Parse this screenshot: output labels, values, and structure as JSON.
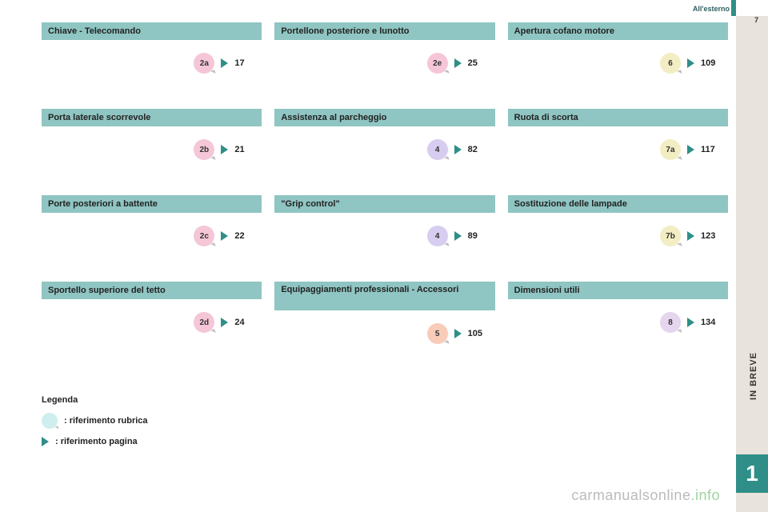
{
  "header": {
    "section": "All'esterno",
    "page_num": "7"
  },
  "side": {
    "label": "IN BREVE",
    "chapter": "1"
  },
  "colors": {
    "bar": "#8fc5c2",
    "triangle": "#2f8f88",
    "side_bg": "#e8e3dc",
    "chapter_bg": "#2f8f88",
    "dot_pink": "#f5c6d7",
    "dot_lav": "#d7cdf0",
    "dot_peach": "#f8ccb8",
    "dot_cream": "#f3edc3",
    "dot_lilac": "#e6d5ef",
    "legend_dot": "#cfeeee"
  },
  "columns": [
    {
      "blocks": [
        {
          "title": "Chiave - Telecomando",
          "dot": "2a",
          "dot_color": "dot_pink",
          "page": "17"
        },
        {
          "title": "Porta laterale scorrevole",
          "dot": "2b",
          "dot_color": "dot_pink",
          "page": "21"
        },
        {
          "title": "Porte posteriori a battente",
          "dot": "2c",
          "dot_color": "dot_pink",
          "page": "22"
        },
        {
          "title": "Sportello superiore del tetto",
          "dot": "2d",
          "dot_color": "dot_pink",
          "page": "24"
        }
      ]
    },
    {
      "blocks": [
        {
          "title": "Portellone posteriore e lunotto",
          "dot": "2e",
          "dot_color": "dot_pink",
          "page": "25"
        },
        {
          "title": "Assistenza al parcheggio",
          "dot": "4",
          "dot_color": "dot_lav",
          "page": "82"
        },
        {
          "title": "\"Grip control\"",
          "dot": "4",
          "dot_color": "dot_lav",
          "page": "89"
        },
        {
          "title": "Equipaggiamenti professionali - Accessori",
          "dot": "5",
          "dot_color": "dot_peach",
          "page": "105",
          "multiline": true
        }
      ]
    },
    {
      "blocks": [
        {
          "title": "Apertura cofano motore",
          "dot": "6",
          "dot_color": "dot_cream",
          "page": "109"
        },
        {
          "title": "Ruota di scorta",
          "dot": "7a",
          "dot_color": "dot_cream",
          "page": "117"
        },
        {
          "title": "Sostituzione delle lampade",
          "dot": "7b",
          "dot_color": "dot_cream",
          "page": "123"
        },
        {
          "title": "Dimensioni utili",
          "dot": "8",
          "dot_color": "dot_lilac",
          "page": "134"
        }
      ]
    }
  ],
  "legend": {
    "title": "Legenda",
    "rubrica": ": riferimento rubrica",
    "pagina": ": riferimento pagina"
  },
  "watermark": {
    "left": "carmanualsonline",
    "right": ".info"
  }
}
